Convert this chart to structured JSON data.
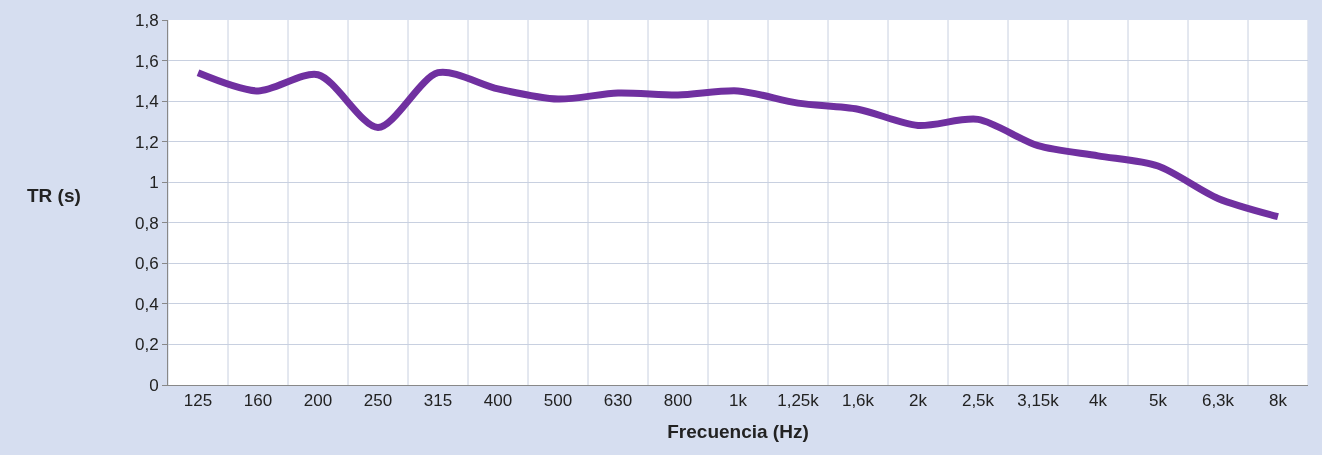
{
  "chart_data": {
    "type": "line",
    "xlabel": "Frecuencia (Hz)",
    "ylabel": "TR (s)",
    "categories": [
      "125",
      "160",
      "200",
      "250",
      "315",
      "400",
      "500",
      "630",
      "800",
      "1k",
      "1,25k",
      "1,6k",
      "2k",
      "2,5k",
      "3,15k",
      "4k",
      "5k",
      "6,3k",
      "8k"
    ],
    "series": [
      {
        "color": "#7030a0",
        "values": [
          1.54,
          1.45,
          1.53,
          1.27,
          1.54,
          1.46,
          1.41,
          1.44,
          1.43,
          1.45,
          1.39,
          1.36,
          1.28,
          1.31,
          1.18,
          1.13,
          1.08,
          0.92,
          0.83
        ]
      }
    ],
    "ylim": [
      0,
      1.8
    ],
    "yticks": [
      0,
      {
        "value": 0.2,
        "label": "0,2"
      },
      {
        "value": 0.4,
        "label": "0,4"
      },
      {
        "value": 0.6,
        "label": "0,6"
      },
      {
        "value": 0.8,
        "label": "0,8"
      },
      1,
      {
        "value": 1.2,
        "label": "1,2"
      },
      {
        "value": 1.4,
        "label": "1,4"
      },
      {
        "value": 1.6,
        "label": "1,6"
      },
      {
        "value": 1.8,
        "label": "1,8"
      }
    ],
    "grid": true,
    "marker": "none",
    "line_style": "solid"
  }
}
